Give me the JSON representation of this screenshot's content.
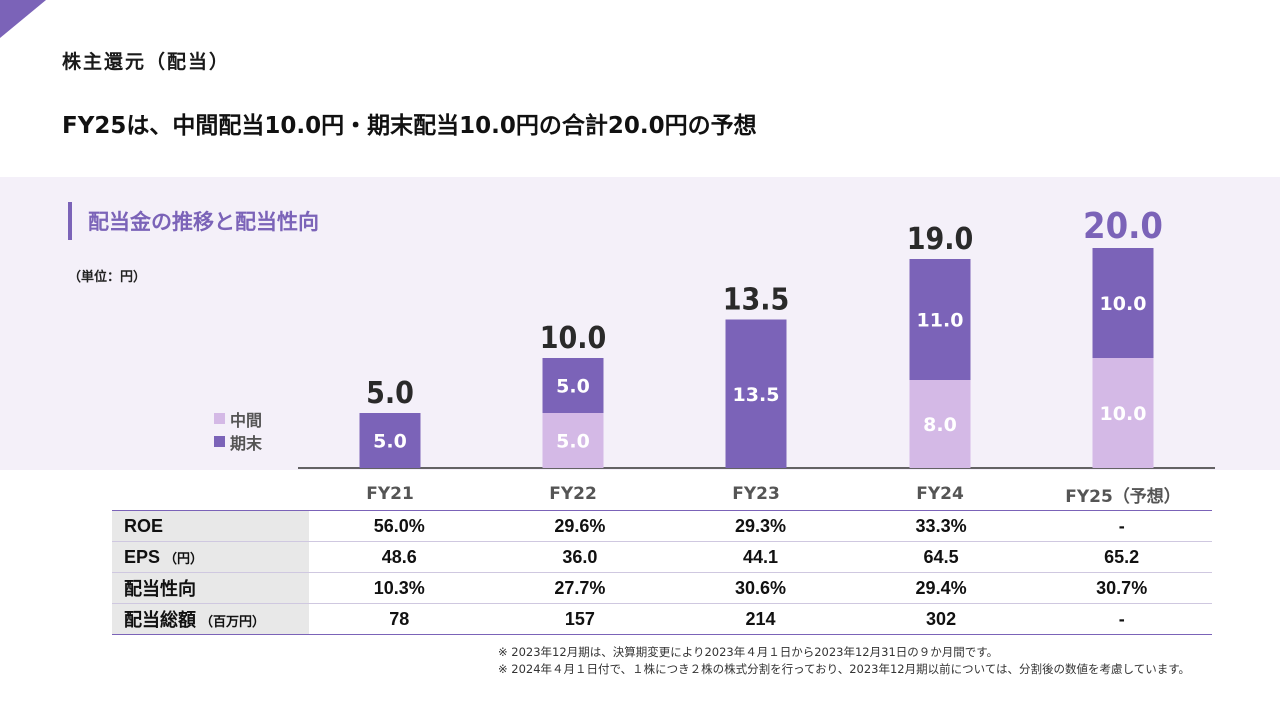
{
  "header": {
    "section_title": "株主還元（配当）",
    "headline": "FY25は、中間配当10.0円・期末配当10.0円の合計20.0円の予想"
  },
  "chart_header": {
    "title": "配当金の推移と配当性向",
    "unit": "（単位：円）"
  },
  "legend": {
    "interim": "中間",
    "year_end": "期末"
  },
  "colors": {
    "interim": "#d4b9e6",
    "year_end": "#7b63b8",
    "forecast_total": "#7b63b8"
  },
  "chart_data": {
    "type": "bar",
    "stacked": true,
    "categories": [
      "FY21",
      "FY22",
      "FY23",
      "FY24",
      "FY25（予想）"
    ],
    "series": [
      {
        "name": "中間",
        "values": [
          0,
          5.0,
          0,
          8.0,
          10.0
        ]
      },
      {
        "name": "期末",
        "values": [
          5.0,
          5.0,
          13.5,
          11.0,
          10.0
        ]
      }
    ],
    "totals": [
      "5.0",
      "10.0",
      "13.5",
      "19.0",
      "20.0"
    ],
    "interim_labels": [
      "",
      "5.0",
      "",
      "8.0",
      "10.0"
    ],
    "year_end_labels": [
      "5.0",
      "5.0",
      "13.5",
      "11.0",
      "10.0"
    ],
    "ylim": [
      0,
      20.0
    ]
  },
  "table": {
    "rows": [
      {
        "label": "ROE",
        "unit": "",
        "values": [
          "56.0%",
          "29.6%",
          "29.3%",
          "33.3%",
          "-"
        ]
      },
      {
        "label": "EPS",
        "unit": "（円）",
        "values": [
          "48.6",
          "36.0",
          "44.1",
          "64.5",
          "65.2"
        ]
      },
      {
        "label": "配当性向",
        "unit": "",
        "values": [
          "10.3%",
          "27.7%",
          "30.6%",
          "29.4%",
          "30.7%"
        ]
      },
      {
        "label": "配当総額",
        "unit": "（百万円）",
        "values": [
          "78",
          "157",
          "214",
          "302",
          "-"
        ]
      }
    ]
  },
  "footnotes": [
    "※ 2023年12月期は、決算期変更により2023年４月１日から2023年12月31日の９か月間です。",
    "※ 2024年４月１日付で、１株につき２株の株式分割を行っており、2023年12月期以前については、分割後の数値を考慮しています。"
  ]
}
